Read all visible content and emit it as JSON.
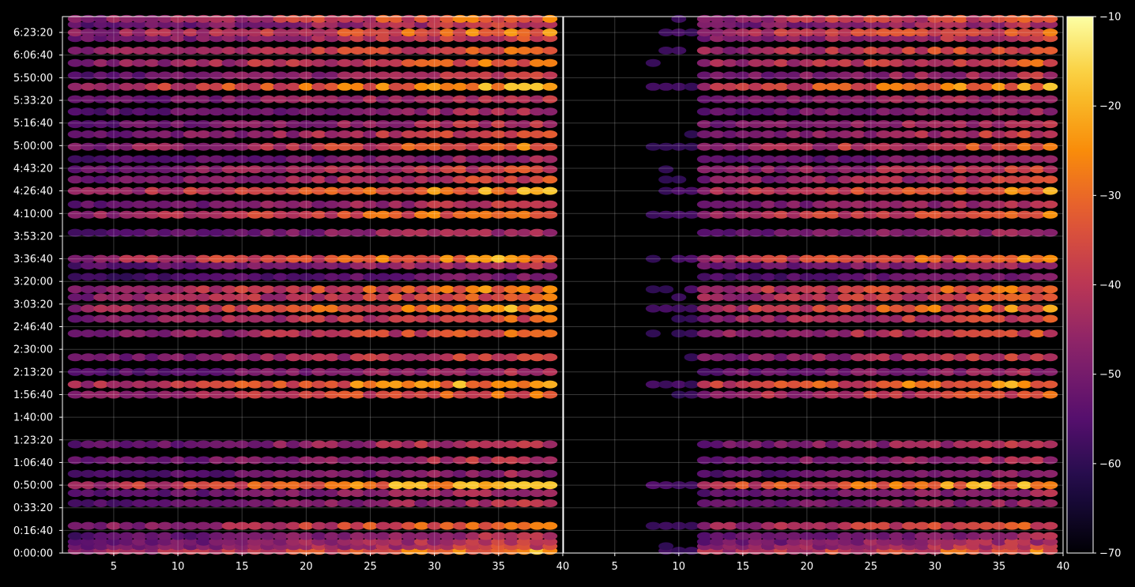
{
  "chart_data": {
    "type": "heatmap",
    "title": "",
    "xlabel": "",
    "ylabel": "",
    "colormap": "inferno",
    "background": "#000000",
    "grid": true,
    "y_ticks_seconds": [
      0,
      1000,
      2000,
      3000,
      4000,
      5000,
      6000,
      7000,
      8000,
      9000,
      10000,
      11000,
      12000,
      13000,
      14000,
      15000,
      16000,
      17000,
      18000,
      19000,
      20000,
      21000,
      22000,
      23000
    ],
    "y_tick_labels": [
      "0:00:00",
      "0:16:40",
      "0:33:20",
      "0:50:00",
      "1:06:40",
      "1:23:20",
      "1:40:00",
      "1:56:40",
      "2:13:20",
      "2:30:00",
      "2:46:40",
      "3:03:20",
      "3:20:00",
      "3:36:40",
      "3:53:20",
      "4:10:00",
      "4:26:40",
      "4:43:20",
      "5:00:00",
      "5:16:40",
      "5:33:20",
      "5:50:00",
      "6:06:40",
      "6:23:20"
    ],
    "ylim_seconds": [
      0,
      23700
    ],
    "panels": [
      {
        "name": "left",
        "xlim": [
          1,
          40
        ],
        "x_ticks": [
          5,
          10,
          15,
          20,
          25,
          30,
          35,
          40
        ],
        "x_tick_labels": [
          "5",
          "10",
          "15",
          "20",
          "25",
          "30",
          "35",
          "40"
        ],
        "x_columns": [
          2,
          39
        ]
      },
      {
        "name": "right",
        "xlim": [
          1,
          40
        ],
        "x_ticks": [
          5,
          10,
          15,
          20,
          25,
          30,
          35,
          40
        ],
        "x_tick_labels": [
          "5",
          "10",
          "15",
          "20",
          "25",
          "30",
          "35",
          "40"
        ],
        "x_columns": [
          1,
          39
        ]
      }
    ],
    "colorbar": {
      "range": [
        -70,
        -10
      ],
      "ticks": [
        -70,
        -60,
        -50,
        -40,
        -30,
        -20,
        -10
      ],
      "tick_labels": [
        "−70",
        "−60",
        "−50",
        "−40",
        "−30",
        "−20",
        "−10"
      ]
    },
    "bands": [
      {
        "y": 100,
        "level": 0.72
      },
      {
        "y": 300,
        "level": 0.55
      },
      {
        "y": 500,
        "level": 0.5
      },
      {
        "y": 750,
        "level": 0.45
      },
      {
        "y": 1200,
        "level": 0.65
      },
      {
        "y": 2200,
        "level": 0.45
      },
      {
        "y": 2650,
        "level": 0.45
      },
      {
        "y": 3000,
        "level": 0.85
      },
      {
        "y": 3500,
        "level": 0.4
      },
      {
        "y": 4100,
        "level": 0.5
      },
      {
        "y": 4800,
        "level": 0.5
      },
      {
        "y": 7000,
        "level": 0.65
      },
      {
        "y": 7450,
        "level": 0.8
      },
      {
        "y": 8000,
        "level": 0.45
      },
      {
        "y": 8650,
        "level": 0.55
      },
      {
        "y": 9700,
        "level": 0.6
      },
      {
        "y": 10350,
        "level": 0.6
      },
      {
        "y": 10800,
        "level": 0.75
      },
      {
        "y": 11300,
        "level": 0.65
      },
      {
        "y": 11650,
        "level": 0.7
      },
      {
        "y": 12200,
        "level": 0.35
      },
      {
        "y": 12700,
        "level": 0.45
      },
      {
        "y": 13000,
        "level": 0.75
      },
      {
        "y": 14150,
        "level": 0.45
      },
      {
        "y": 14950,
        "level": 0.7
      },
      {
        "y": 15400,
        "level": 0.5
      },
      {
        "y": 16000,
        "level": 0.75
      },
      {
        "y": 16500,
        "level": 0.55
      },
      {
        "y": 16950,
        "level": 0.55
      },
      {
        "y": 17400,
        "level": 0.4
      },
      {
        "y": 17950,
        "level": 0.65
      },
      {
        "y": 18500,
        "level": 0.55
      },
      {
        "y": 18950,
        "level": 0.5
      },
      {
        "y": 19500,
        "level": 0.45
      },
      {
        "y": 20050,
        "level": 0.5
      },
      {
        "y": 20600,
        "level": 0.8
      },
      {
        "y": 21100,
        "level": 0.5
      },
      {
        "y": 21650,
        "level": 0.65
      },
      {
        "y": 22200,
        "level": 0.65
      },
      {
        "y": 22750,
        "level": 0.55
      },
      {
        "y": 23000,
        "level": 0.7
      },
      {
        "y": 23350,
        "level": 0.5
      },
      {
        "y": 23600,
        "level": 0.65
      }
    ]
  }
}
